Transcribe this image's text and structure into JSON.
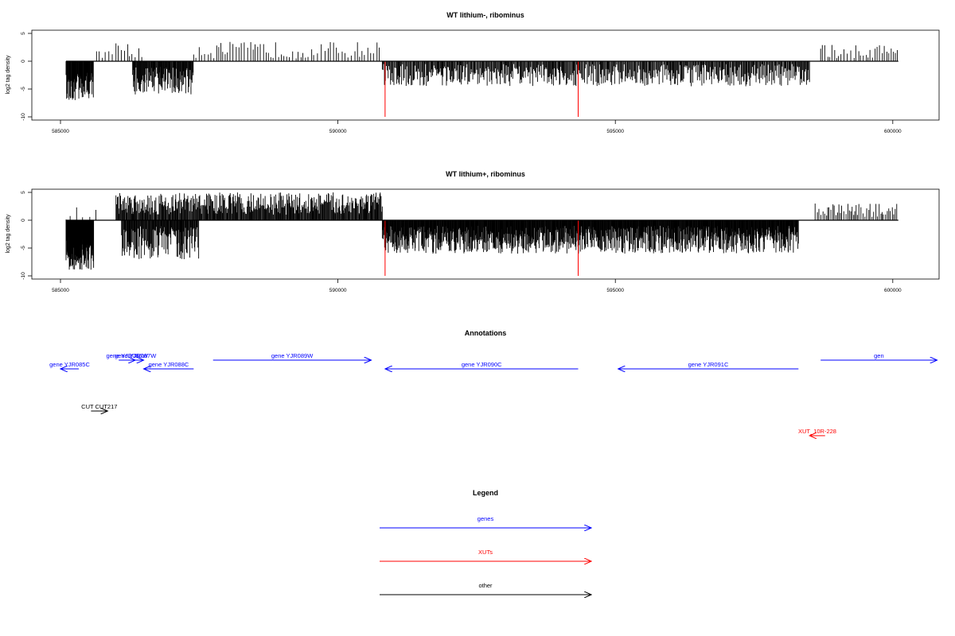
{
  "colors": {
    "bars": "#000000",
    "markers": "#ff0000",
    "genes": "#0000ff",
    "xuts": "#ff0000",
    "other": "#000000"
  },
  "chart_data": [
    {
      "type": "bar",
      "title": "WT lithium-, ribominus",
      "ylabel": "log2 tag density",
      "xlim": [
        585000,
        600100
      ],
      "ylim": [
        -10,
        5
      ],
      "xticks": [
        585000,
        590000,
        595000,
        600000
      ],
      "yticks": [
        5,
        0,
        -5,
        -10
      ],
      "markers": [
        590850,
        594330
      ],
      "segments": [
        {
          "from": 585100,
          "to": 585600,
          "min": 2,
          "max": 7,
          "dir": -1,
          "step": 8
        },
        {
          "from": 585650,
          "to": 586000,
          "min": 0,
          "max": 2,
          "dir": 1,
          "step": 60
        },
        {
          "from": 586000,
          "to": 586500,
          "min": 0.5,
          "max": 3.5,
          "dir": 1,
          "step": 50
        },
        {
          "from": 586300,
          "to": 587400,
          "min": 1,
          "max": 6,
          "dir": -1,
          "step": 10
        },
        {
          "from": 587400,
          "to": 590800,
          "min": 0.5,
          "max": 3.5,
          "dir": 1,
          "step": 50
        },
        {
          "from": 590800,
          "to": 598500,
          "min": 0.5,
          "max": 4.5,
          "dir": -1,
          "step": 14
        },
        {
          "from": 598700,
          "to": 600100,
          "min": 0.5,
          "max": 3,
          "dir": 1,
          "step": 45
        }
      ]
    },
    {
      "type": "bar",
      "title": "WT lithium+, ribominus",
      "ylabel": "log2 tag density",
      "xlim": [
        585000,
        600100
      ],
      "ylim": [
        -10,
        5
      ],
      "xticks": [
        585000,
        590000,
        595000,
        600000
      ],
      "yticks": [
        5,
        0,
        -5,
        -10
      ],
      "markers": [
        590850,
        594330
      ],
      "segments": [
        {
          "from": 585100,
          "to": 585600,
          "min": 3,
          "max": 9,
          "dir": -1,
          "step": 4
        },
        {
          "from": 585100,
          "to": 585700,
          "min": 0,
          "max": 3,
          "dir": 1,
          "step": 120
        },
        {
          "from": 586000,
          "to": 590800,
          "min": 1,
          "max": 5,
          "dir": 1,
          "step": 12
        },
        {
          "from": 586100,
          "to": 587500,
          "min": 1,
          "max": 7,
          "dir": -1,
          "step": 10
        },
        {
          "from": 590800,
          "to": 598300,
          "min": 1,
          "max": 6,
          "dir": -1,
          "step": 8
        },
        {
          "from": 598600,
          "to": 600100,
          "min": 0.5,
          "max": 3,
          "dir": 1,
          "step": 30
        }
      ]
    }
  ],
  "annotations": {
    "title": "Annotations",
    "items": [
      {
        "label": "gene YJR085C",
        "from": 585330,
        "to": 585000,
        "row": 1,
        "kind": "genes"
      },
      {
        "label": "gene YJR086W",
        "from": 586050,
        "to": 586350,
        "row": 0,
        "kind": "genes"
      },
      {
        "label": "gene YJR087W",
        "from": 586200,
        "to": 586500,
        "row": 0,
        "kind": "genes"
      },
      {
        "label": "gene YJR088C",
        "from": 587400,
        "to": 586500,
        "row": 1,
        "kind": "genes"
      },
      {
        "label": "gene YJR089W",
        "from": 587750,
        "to": 590600,
        "row": 0,
        "kind": "genes"
      },
      {
        "label": "gene YJR090C",
        "from": 594330,
        "to": 590850,
        "row": 1,
        "kind": "genes"
      },
      {
        "label": "gene YJR091C",
        "from": 598300,
        "to": 595050,
        "row": 1,
        "kind": "genes"
      },
      {
        "label": "gen",
        "from": 598700,
        "to": 600800,
        "row": 0,
        "kind": "genes"
      },
      {
        "label": "CUT CUT217",
        "from": 585550,
        "to": 585850,
        "row": 2,
        "kind": "other"
      },
      {
        "label": "XUT_10R-228",
        "from": 598780,
        "to": 598500,
        "row": 3,
        "kind": "xuts"
      }
    ]
  },
  "legend": {
    "title": "Legend",
    "items": [
      {
        "label": "genes",
        "kind": "genes"
      },
      {
        "label": "XUTs",
        "kind": "xuts"
      },
      {
        "label": "other",
        "kind": "other"
      }
    ]
  }
}
